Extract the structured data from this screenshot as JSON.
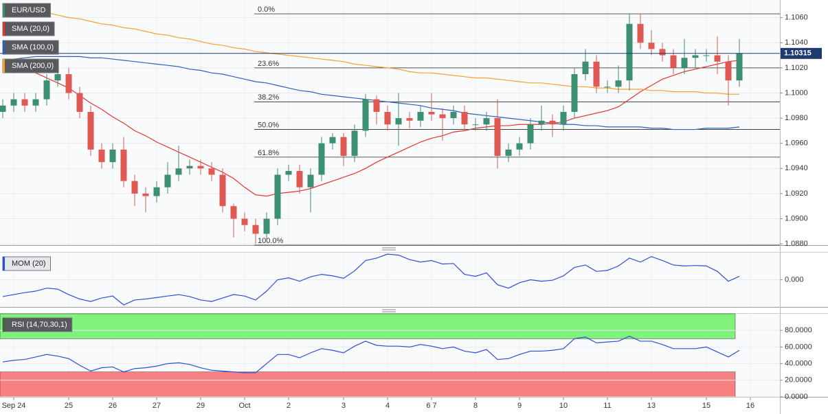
{
  "chart_data": [
    {
      "type": "candlestick",
      "name": "EUR/USD",
      "up_color": "#3d8f72",
      "down_color": "#df5a52",
      "categories": [
        null,
        "Sep 24",
        null,
        null,
        null,
        null,
        "25",
        null,
        null,
        null,
        "26",
        null,
        null,
        null,
        "27",
        null,
        null,
        null,
        "29",
        null,
        null,
        null,
        "Oct",
        null,
        null,
        null,
        "2",
        null,
        null,
        null,
        null,
        "3",
        null,
        null,
        null,
        "4",
        null,
        null,
        null,
        "6 7",
        null,
        null,
        null,
        "8",
        null,
        null,
        null,
        "9",
        null,
        null,
        null,
        "10",
        null,
        null,
        null,
        "11",
        null,
        null,
        null,
        "13",
        null,
        null,
        null,
        null,
        "15",
        null,
        null,
        null,
        "16",
        null
      ],
      "open": [
        1.0985,
        1.099,
        1.0995,
        1.099,
        1.0995,
        1.101,
        1.1015,
        1.1,
        1.0985,
        1.0955,
        1.0945,
        1.0955,
        1.093,
        1.092,
        1.0918,
        1.0925,
        1.0935,
        1.094,
        1.0942,
        1.094,
        1.0935,
        1.091,
        1.09,
        1.0895,
        1.0888,
        1.09,
        1.0935,
        1.0938,
        1.0925,
        1.0935,
        1.096,
        1.0965,
        1.095,
        1.097,
        1.0995,
        1.0985,
        1.0975,
        1.098,
        1.0978,
        1.0985,
        1.0983,
        1.098,
        1.0985,
        1.0975,
        1.0975,
        1.098,
        1.095,
        1.0955,
        1.096,
        1.0975,
        1.0978,
        1.0975,
        1.0985,
        1.1015,
        1.1025,
        1.1005,
        1.1005,
        1.101,
        1.1055,
        1.104,
        1.1035,
        1.103,
        1.102,
        1.1028,
        1.103,
        1.103,
        1.1025,
        1.101,
        null,
        null
      ],
      "high": [
        1.0995,
        1.1,
        1.1,
        1.1,
        1.1015,
        1.102,
        1.102,
        1.1005,
        1.099,
        1.096,
        1.096,
        1.0965,
        1.0935,
        1.0925,
        1.093,
        1.0945,
        1.0958,
        1.0947,
        1.0947,
        1.0945,
        1.094,
        1.0912,
        1.0905,
        1.09,
        1.0905,
        1.094,
        1.0943,
        1.0943,
        1.094,
        1.0965,
        1.0968,
        1.0968,
        1.0975,
        1.0999,
        1.0998,
        1.099,
        1.1,
        1.0985,
        1.099,
        1.1,
        1.0988,
        1.099,
        1.099,
        1.098,
        1.0985,
        1.0995,
        1.096,
        1.0965,
        1.098,
        1.099,
        1.0983,
        1.099,
        1.102,
        1.1035,
        1.103,
        1.101,
        1.1022,
        1.1063,
        1.1063,
        1.105,
        1.104,
        1.1035,
        1.1043,
        1.1035,
        1.1035,
        1.1045,
        1.103,
        1.1043,
        null,
        null
      ],
      "low": [
        1.098,
        1.0985,
        1.0985,
        1.0985,
        1.099,
        1.1005,
        1.0995,
        1.098,
        1.095,
        1.094,
        1.094,
        1.0925,
        1.091,
        1.0905,
        1.0913,
        1.092,
        1.093,
        1.0935,
        1.0935,
        1.093,
        1.0905,
        1.0885,
        1.089,
        1.088,
        1.0883,
        1.0895,
        1.093,
        1.092,
        1.0905,
        1.093,
        1.0955,
        1.0942,
        1.0945,
        1.0965,
        1.0975,
        1.097,
        1.0958,
        1.0972,
        1.0973,
        1.0978,
        1.0962,
        1.0975,
        1.097,
        1.097,
        1.097,
        1.094,
        1.0945,
        1.095,
        1.0955,
        1.097,
        1.0965,
        1.097,
        1.098,
        1.101,
        1.1,
        1.1,
        1.1,
        1.1002,
        1.1035,
        1.103,
        1.1025,
        1.1015,
        1.1015,
        1.102,
        1.1025,
        1.1015,
        1.099,
        1.1005,
        null,
        null
      ],
      "close": [
        1.099,
        1.0995,
        1.099,
        1.0995,
        1.101,
        1.1015,
        1.1,
        1.0985,
        1.0955,
        1.0945,
        1.0955,
        1.093,
        1.092,
        1.0918,
        1.0925,
        1.0935,
        1.094,
        1.0942,
        1.094,
        1.0935,
        1.091,
        1.09,
        1.0895,
        1.0888,
        1.09,
        1.0935,
        1.0938,
        1.0925,
        1.0935,
        1.096,
        1.0965,
        1.095,
        1.097,
        1.0995,
        1.0985,
        1.0975,
        1.098,
        1.0978,
        1.0985,
        1.0983,
        1.098,
        1.0985,
        1.0975,
        1.0975,
        1.098,
        1.095,
        1.0955,
        1.096,
        1.0975,
        1.0978,
        1.0975,
        1.0985,
        1.1015,
        1.1025,
        1.1005,
        1.1005,
        1.101,
        1.1055,
        1.104,
        1.1035,
        1.103,
        1.102,
        1.1028,
        1.103,
        1.103,
        1.1025,
        1.101,
        1.10315,
        null,
        null
      ],
      "last_label": "1.10315",
      "series": [
        {
          "name": "SMA (20,0)",
          "color": "#e8322e",
          "values": [
            1.1027,
            1.1024,
            1.102,
            1.1016,
            1.1012,
            1.1008,
            1.1004,
            1.0998,
            1.0992,
            1.0987,
            1.0981,
            1.0976,
            1.097,
            1.0966,
            1.0961,
            1.0957,
            1.0953,
            1.0949,
            1.0945,
            1.0941,
            1.0937,
            1.0932,
            1.0925,
            1.0919,
            1.0918,
            1.092,
            1.0921,
            1.0922,
            1.0924,
            1.0927,
            1.093,
            1.0933,
            1.0936,
            1.094,
            1.0945,
            1.0949,
            1.0953,
            1.0957,
            1.0961,
            1.0964,
            1.0966,
            1.0969,
            1.097,
            1.0972,
            1.0973,
            1.0974,
            1.0974,
            1.0975,
            1.0975,
            1.0975,
            1.0976,
            1.0977,
            1.098,
            1.0982,
            1.0984,
            1.0986,
            1.0989,
            1.0995,
            1.1001,
            1.1006,
            1.1011,
            1.1014,
            1.1017,
            1.1019,
            1.1021,
            1.1023,
            1.1025,
            1.1026,
            null,
            null
          ]
        },
        {
          "name": "SMA (100,0)",
          "color": "#2a5fbd",
          "values": [
            1.1026,
            1.1027,
            1.1028,
            1.1029,
            1.1029,
            1.1029,
            1.1029,
            1.1029,
            1.1028,
            1.1028,
            1.1027,
            1.1026,
            1.1025,
            1.1024,
            1.1023,
            1.1022,
            1.1021,
            1.1019,
            1.1018,
            1.1016,
            1.1015,
            1.1013,
            1.1011,
            1.1009,
            1.1008,
            1.1006,
            1.1004,
            1.1002,
            1.1001,
            1.0999,
            1.0998,
            1.0997,
            1.0996,
            1.0995,
            1.0994,
            1.0993,
            1.0992,
            1.0991,
            1.099,
            1.0988,
            1.0987,
            1.0986,
            1.0984,
            1.0983,
            1.0982,
            1.0981,
            1.098,
            1.0979,
            1.0978,
            1.0977,
            1.0976,
            1.0975,
            1.0975,
            1.0974,
            1.0974,
            1.0973,
            1.0973,
            1.0973,
            1.0973,
            1.0972,
            1.0972,
            1.0971,
            1.0971,
            1.0971,
            1.0972,
            1.0972,
            1.0972,
            1.0973,
            null,
            null
          ]
        },
        {
          "name": "SMA (200,0)",
          "color": "#f5a030",
          "values": [
            1.107,
            1.1068,
            1.1067,
            1.1065,
            1.1064,
            1.1062,
            1.106,
            1.1059,
            1.1057,
            1.1055,
            1.1054,
            1.1052,
            1.1051,
            1.1049,
            1.1047,
            1.1046,
            1.1044,
            1.1043,
            1.1041,
            1.1039,
            1.1038,
            1.1036,
            1.1035,
            1.1033,
            1.1032,
            1.1031,
            1.103,
            1.1029,
            1.1028,
            1.1027,
            1.1026,
            1.1025,
            1.1023,
            1.1022,
            1.1021,
            1.102,
            1.1019,
            1.1017,
            1.1016,
            1.1016,
            1.1015,
            1.1014,
            1.1013,
            1.1012,
            1.1012,
            1.1011,
            1.101,
            1.1009,
            1.1008,
            1.1008,
            1.1007,
            1.1006,
            1.1005,
            1.1005,
            1.1004,
            1.1004,
            1.1003,
            1.1003,
            1.1003,
            1.1002,
            1.1002,
            1.1001,
            1.1001,
            1.1001,
            1.1,
            1.1,
            1.0999,
            1.0999,
            null,
            null
          ]
        }
      ],
      "fib_levels": [
        {
          "label": "0.0%",
          "value": 1.1063
        },
        {
          "label": "23.6%",
          "value": 1.102
        },
        {
          "label": "38.2%",
          "value": 1.0993
        },
        {
          "label": "50.0%",
          "value": 1.0971
        },
        {
          "label": "61.8%",
          "value": 1.0949
        },
        {
          "label": "100.0%",
          "value": 1.0879
        }
      ],
      "ylim": [
        1.0879,
        1.1074
      ],
      "yticks": [
        {
          "value": 1.088,
          "label": "1.0880"
        },
        {
          "value": 1.09,
          "label": "1.0900"
        },
        {
          "value": 1.092,
          "label": "1.0920"
        },
        {
          "value": 1.094,
          "label": "1.0940"
        },
        {
          "value": 1.096,
          "label": "1.0960"
        },
        {
          "value": 1.098,
          "label": "1.0980"
        },
        {
          "value": 1.1,
          "label": "1.1000"
        },
        {
          "value": 1.102,
          "label": "1.1020"
        },
        {
          "value": 1.104,
          "label": "1.1040"
        },
        {
          "value": 1.106,
          "label": "1.1060"
        }
      ],
      "grid": true
    },
    {
      "type": "line",
      "series": [
        {
          "name": "MOM (20)",
          "color": "#2a4fd6",
          "values": [
            -0.0034,
            -0.003,
            -0.0026,
            -0.0023,
            -0.0017,
            -0.0019,
            -0.003,
            -0.0039,
            -0.0044,
            -0.0037,
            -0.0033,
            -0.0051,
            -0.0041,
            -0.0039,
            -0.0036,
            -0.0033,
            -0.003,
            -0.0034,
            -0.0041,
            -0.0044,
            -0.0037,
            -0.003,
            -0.0033,
            -0.0041,
            -0.0023,
            0.0,
            0.0004,
            -0.0003,
            0.0006,
            0.0011,
            0.0008,
            0.0003,
            0.0018,
            0.0039,
            0.0044,
            0.0052,
            0.005,
            0.0041,
            0.0036,
            0.0039,
            0.0032,
            0.0033,
            0.0011,
            0.0007,
            0.0014,
            -0.001,
            -0.0017,
            -0.0006,
            0.0,
            -0.0003,
            -0.0001,
            0.0008,
            0.0025,
            0.003,
            0.0017,
            0.0019,
            0.0028,
            0.0044,
            0.0036,
            0.0047,
            0.0039,
            0.003,
            0.0028,
            0.0029,
            0.0028,
            0.0017,
            -0.0003,
            0.0007,
            null,
            null
          ]
        }
      ],
      "ylim": [
        -0.0055,
        0.0055
      ],
      "yticks": [
        {
          "value": 0,
          "label": "0.000"
        }
      ]
    },
    {
      "type": "line",
      "series": [
        {
          "name": "RSI (14,70,30,1)",
          "color": "#2a4fd6",
          "values": [
            42,
            44,
            45,
            48,
            51,
            49,
            46,
            38,
            31,
            35,
            36,
            30,
            34,
            35,
            37,
            40,
            41,
            39,
            35,
            32,
            31,
            30,
            29,
            29,
            40,
            51,
            51,
            47,
            53,
            58,
            56,
            53,
            61,
            67,
            62,
            61,
            61,
            60,
            63,
            61,
            58,
            60,
            55,
            53,
            57,
            45,
            46,
            51,
            55,
            55,
            56,
            58,
            70,
            72,
            65,
            66,
            67,
            73,
            67,
            67,
            63,
            58,
            58,
            58,
            60,
            54,
            48,
            56,
            null,
            null
          ]
        }
      ],
      "bands": [
        {
          "from": 70,
          "to": 100,
          "color": "#7ef27a"
        },
        {
          "from": 0,
          "to": 30,
          "color": "#f98080"
        }
      ],
      "ylim": [
        0,
        100
      ],
      "yticks": [
        {
          "value": 0,
          "label": "0.0000"
        },
        {
          "value": 20,
          "label": "20.0000"
        },
        {
          "value": 40,
          "label": "40.0000"
        },
        {
          "value": 60,
          "label": "60.0000"
        },
        {
          "value": 80,
          "label": "80.0000"
        }
      ]
    }
  ]
}
